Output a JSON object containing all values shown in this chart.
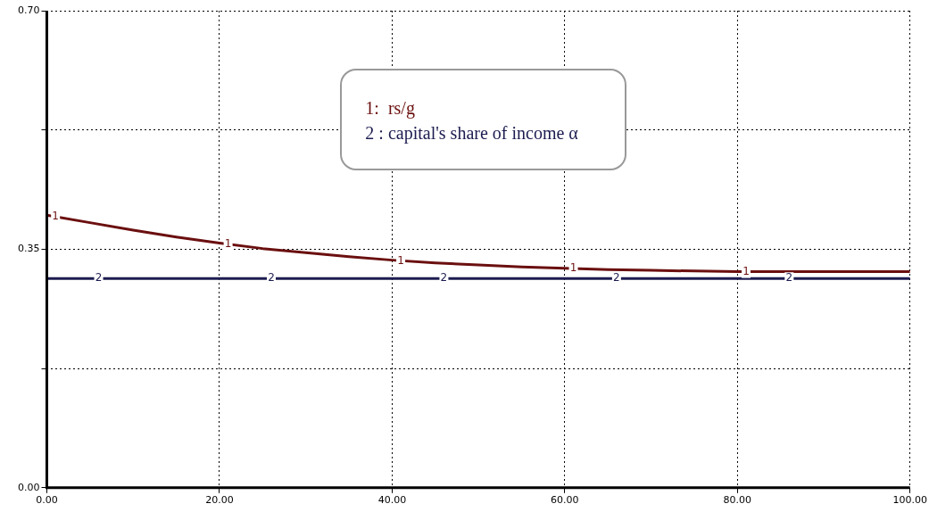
{
  "chart_data": {
    "type": "line",
    "series": [
      {
        "name": "1:  rs/g",
        "color": "#6b0f0f",
        "x": [
          0,
          5,
          10,
          15,
          20,
          25,
          30,
          35,
          40,
          45,
          50,
          55,
          60,
          65,
          70,
          75,
          80,
          85,
          90,
          95,
          100
        ],
        "values": [
          0.4,
          0.389,
          0.378,
          0.368,
          0.359,
          0.351,
          0.345,
          0.339,
          0.334,
          0.33,
          0.327,
          0.324,
          0.322,
          0.32,
          0.319,
          0.318,
          0.317,
          0.317,
          0.317,
          0.317,
          0.317
        ]
      },
      {
        "name": "2 : capital's share of income α",
        "color": "#1c1c50",
        "x": [
          0,
          100
        ],
        "values": [
          0.307,
          0.307
        ]
      }
    ],
    "xlim": [
      0,
      100
    ],
    "xticks": [
      {
        "value": 0,
        "label": "0.00"
      },
      {
        "value": 20,
        "label": "20.00"
      },
      {
        "value": 40,
        "label": "40.00"
      },
      {
        "value": 60,
        "label": "60.00"
      },
      {
        "value": 80,
        "label": "80.00"
      },
      {
        "value": 100,
        "label": "100.00"
      }
    ],
    "ylim": [
      0,
      0.7
    ],
    "yticks": [
      {
        "value": 0,
        "label": "0.00"
      },
      {
        "value": 0.175,
        "label": null
      },
      {
        "value": 0.35,
        "label": "0.35"
      },
      {
        "value": 0.525,
        "label": null
      },
      {
        "value": 0.7,
        "label": "0.70"
      }
    ],
    "annotations": [
      {
        "text": "1",
        "x": 1,
        "y": 0.398
      },
      {
        "text": "1",
        "x": 21,
        "y": 0.357
      },
      {
        "text": "1",
        "x": 41,
        "y": 0.333
      },
      {
        "text": "1",
        "x": 61,
        "y": 0.322
      },
      {
        "text": "1",
        "x": 81,
        "y": 0.317
      },
      {
        "text": "2",
        "x": 6,
        "y": 0.307
      },
      {
        "text": "2",
        "x": 26,
        "y": 0.307
      },
      {
        "text": "2",
        "x": 46,
        "y": 0.307
      },
      {
        "text": "2",
        "x": 66,
        "y": 0.307
      },
      {
        "text": "2",
        "x": 86,
        "y": 0.307
      }
    ],
    "grid": true,
    "legend": "top",
    "marker": "none",
    "line_style": "solid"
  }
}
